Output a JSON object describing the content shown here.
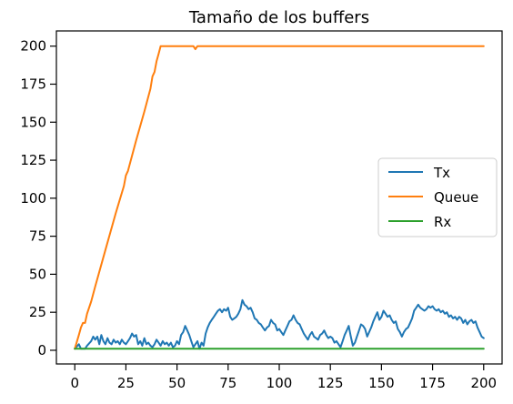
{
  "chart_data": {
    "type": "line",
    "title": "Tamaño de los buffers",
    "xlabel": "",
    "ylabel": "",
    "xlim": [
      -9,
      209
    ],
    "ylim": [
      -9,
      210
    ],
    "xticks": [
      0,
      25,
      50,
      75,
      100,
      125,
      150,
      175,
      200
    ],
    "yticks": [
      0,
      25,
      50,
      75,
      100,
      125,
      150,
      175,
      200
    ],
    "grid": false,
    "legend_position": "center-right",
    "series": [
      {
        "name": "Tx",
        "color": "#1f77b4",
        "points": [
          [
            0,
            1
          ],
          [
            2,
            4
          ],
          [
            3,
            1
          ],
          [
            5,
            1
          ],
          [
            6,
            3
          ],
          [
            8,
            6
          ],
          [
            9,
            9
          ],
          [
            10,
            7
          ],
          [
            11,
            9
          ],
          [
            12,
            4
          ],
          [
            13,
            10
          ],
          [
            14,
            6
          ],
          [
            15,
            4
          ],
          [
            16,
            8
          ],
          [
            17,
            5
          ],
          [
            18,
            4
          ],
          [
            19,
            7
          ],
          [
            20,
            5
          ],
          [
            21,
            6
          ],
          [
            22,
            4
          ],
          [
            23,
            7
          ],
          [
            24,
            5
          ],
          [
            25,
            4
          ],
          [
            26,
            6
          ],
          [
            27,
            8
          ],
          [
            28,
            11
          ],
          [
            29,
            9
          ],
          [
            30,
            10
          ],
          [
            31,
            4
          ],
          [
            32,
            6
          ],
          [
            33,
            3
          ],
          [
            34,
            8
          ],
          [
            35,
            4
          ],
          [
            36,
            5
          ],
          [
            37,
            3
          ],
          [
            38,
            2
          ],
          [
            39,
            4
          ],
          [
            40,
            7
          ],
          [
            41,
            5
          ],
          [
            42,
            3
          ],
          [
            43,
            6
          ],
          [
            44,
            4
          ],
          [
            45,
            5
          ],
          [
            46,
            3
          ],
          [
            47,
            5
          ],
          [
            48,
            2
          ],
          [
            49,
            3
          ],
          [
            50,
            6
          ],
          [
            51,
            4
          ],
          [
            52,
            10
          ],
          [
            53,
            12
          ],
          [
            54,
            16
          ],
          [
            55,
            13
          ],
          [
            56,
            10
          ],
          [
            57,
            6
          ],
          [
            58,
            2
          ],
          [
            59,
            4
          ],
          [
            60,
            6
          ],
          [
            61,
            1
          ],
          [
            62,
            5
          ],
          [
            63,
            3
          ],
          [
            64,
            11
          ],
          [
            65,
            15
          ],
          [
            66,
            18
          ],
          [
            67,
            20
          ],
          [
            68,
            22
          ],
          [
            69,
            24
          ],
          [
            70,
            26
          ],
          [
            71,
            27
          ],
          [
            72,
            25
          ],
          [
            73,
            27
          ],
          [
            74,
            26
          ],
          [
            75,
            28
          ],
          [
            76,
            22
          ],
          [
            77,
            20
          ],
          [
            78,
            21
          ],
          [
            79,
            22
          ],
          [
            80,
            24
          ],
          [
            81,
            27
          ],
          [
            82,
            33
          ],
          [
            83,
            30
          ],
          [
            84,
            29
          ],
          [
            85,
            27
          ],
          [
            86,
            28
          ],
          [
            87,
            25
          ],
          [
            88,
            21
          ],
          [
            89,
            20
          ],
          [
            90,
            18
          ],
          [
            91,
            17
          ],
          [
            92,
            15
          ],
          [
            93,
            13
          ],
          [
            94,
            15
          ],
          [
            95,
            16
          ],
          [
            96,
            20
          ],
          [
            97,
            18
          ],
          [
            98,
            17
          ],
          [
            99,
            13
          ],
          [
            100,
            14
          ],
          [
            101,
            12
          ],
          [
            102,
            10
          ],
          [
            103,
            13
          ],
          [
            104,
            16
          ],
          [
            105,
            19
          ],
          [
            106,
            20
          ],
          [
            107,
            23
          ],
          [
            108,
            20
          ],
          [
            109,
            18
          ],
          [
            110,
            17
          ],
          [
            111,
            14
          ],
          [
            112,
            11
          ],
          [
            113,
            9
          ],
          [
            114,
            7
          ],
          [
            115,
            10
          ],
          [
            116,
            12
          ],
          [
            117,
            9
          ],
          [
            118,
            8
          ],
          [
            119,
            7
          ],
          [
            120,
            10
          ],
          [
            121,
            11
          ],
          [
            122,
            13
          ],
          [
            123,
            10
          ],
          [
            124,
            8
          ],
          [
            125,
            9
          ],
          [
            126,
            8
          ],
          [
            127,
            5
          ],
          [
            128,
            6
          ],
          [
            129,
            4
          ],
          [
            130,
            2
          ],
          [
            131,
            6
          ],
          [
            132,
            10
          ],
          [
            133,
            13
          ],
          [
            134,
            16
          ],
          [
            135,
            9
          ],
          [
            136,
            3
          ],
          [
            137,
            5
          ],
          [
            138,
            9
          ],
          [
            139,
            13
          ],
          [
            140,
            17
          ],
          [
            141,
            16
          ],
          [
            142,
            14
          ],
          [
            143,
            9
          ],
          [
            144,
            12
          ],
          [
            145,
            15
          ],
          [
            146,
            19
          ],
          [
            147,
            22
          ],
          [
            148,
            25
          ],
          [
            149,
            20
          ],
          [
            150,
            22
          ],
          [
            151,
            26
          ],
          [
            152,
            24
          ],
          [
            153,
            22
          ],
          [
            154,
            23
          ],
          [
            155,
            20
          ],
          [
            156,
            18
          ],
          [
            157,
            19
          ],
          [
            158,
            14
          ],
          [
            159,
            12
          ],
          [
            160,
            9
          ],
          [
            161,
            12
          ],
          [
            162,
            14
          ],
          [
            163,
            15
          ],
          [
            164,
            18
          ],
          [
            165,
            21
          ],
          [
            166,
            26
          ],
          [
            167,
            28
          ],
          [
            168,
            30
          ],
          [
            169,
            28
          ],
          [
            170,
            27
          ],
          [
            171,
            26
          ],
          [
            172,
            27
          ],
          [
            173,
            29
          ],
          [
            174,
            28
          ],
          [
            175,
            29
          ],
          [
            176,
            27
          ],
          [
            177,
            26
          ],
          [
            178,
            27
          ],
          [
            179,
            25
          ],
          [
            180,
            26
          ],
          [
            181,
            24
          ],
          [
            182,
            25
          ],
          [
            183,
            22
          ],
          [
            184,
            23
          ],
          [
            185,
            21
          ],
          [
            186,
            22
          ],
          [
            187,
            20
          ],
          [
            188,
            22
          ],
          [
            189,
            21
          ],
          [
            190,
            18
          ],
          [
            191,
            20
          ],
          [
            192,
            17
          ],
          [
            193,
            19
          ],
          [
            194,
            20
          ],
          [
            195,
            18
          ],
          [
            196,
            19
          ],
          [
            197,
            15
          ],
          [
            198,
            12
          ],
          [
            199,
            9
          ],
          [
            200,
            8
          ]
        ]
      },
      {
        "name": "Queue",
        "color": "#ff7f0e",
        "points": [
          [
            0,
            1
          ],
          [
            2,
            10
          ],
          [
            3,
            15
          ],
          [
            4,
            18
          ],
          [
            5,
            18
          ],
          [
            6,
            24
          ],
          [
            8,
            32
          ],
          [
            10,
            42
          ],
          [
            15,
            66
          ],
          [
            20,
            90
          ],
          [
            24,
            108
          ],
          [
            25,
            115
          ],
          [
            26,
            118
          ],
          [
            30,
            138
          ],
          [
            34,
            157
          ],
          [
            37,
            172
          ],
          [
            38,
            180
          ],
          [
            39,
            183
          ],
          [
            40,
            190
          ],
          [
            41,
            195
          ],
          [
            42,
            200
          ],
          [
            58,
            200
          ],
          [
            59,
            198
          ],
          [
            60,
            200
          ],
          [
            200,
            200
          ]
        ]
      },
      {
        "name": "Rx",
        "color": "#2ca02c",
        "points": [
          [
            0,
            1
          ],
          [
            200,
            1
          ]
        ]
      }
    ]
  }
}
